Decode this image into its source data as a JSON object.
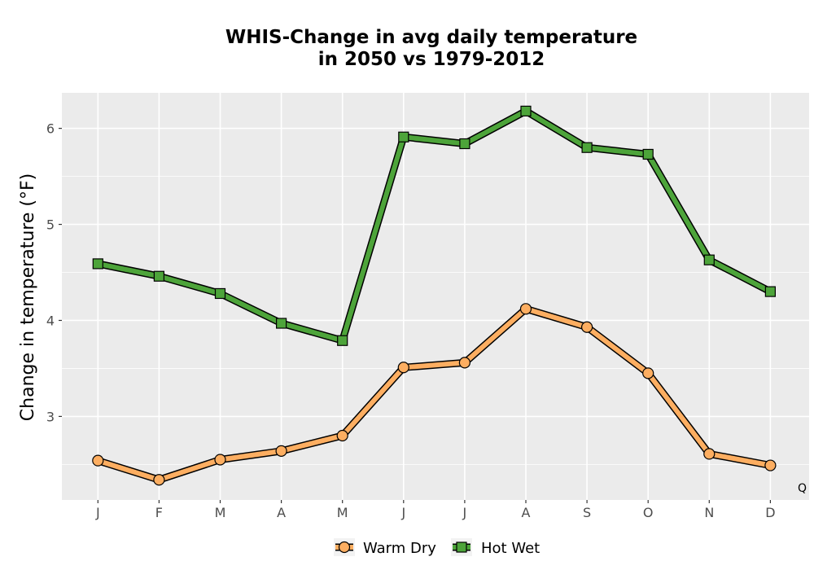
{
  "chart_data": {
    "type": "line",
    "title_line1": "WHIS-Change in avg daily temperature",
    "title_line2": "in 2050 vs 1979-2012",
    "ylabel": "Change in temperature (°F)",
    "xlabel": "",
    "categories": [
      "J",
      "F",
      "M",
      "A",
      "M",
      "J",
      "J",
      "A",
      "S",
      "O",
      "N",
      "D"
    ],
    "y_ticks": [
      3,
      4,
      5,
      6
    ],
    "ylim": [
      2.13,
      6.37
    ],
    "grid": true,
    "legend_position": "bottom",
    "corner_label": "Q",
    "series": [
      {
        "name": "Warm Dry",
        "marker": "circle",
        "color": "#fdae61",
        "values": [
          2.54,
          2.34,
          2.55,
          2.64,
          2.8,
          3.51,
          3.56,
          4.12,
          3.93,
          3.45,
          2.61,
          2.49
        ]
      },
      {
        "name": "Hot Wet",
        "marker": "square",
        "color": "#4da43a",
        "values": [
          4.59,
          4.46,
          4.28,
          3.97,
          3.79,
          5.91,
          5.84,
          6.18,
          5.8,
          5.73,
          4.63,
          4.3
        ]
      }
    ]
  }
}
